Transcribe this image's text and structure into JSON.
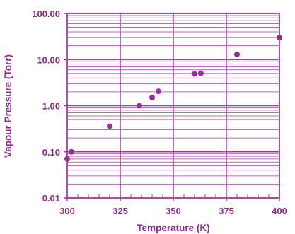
{
  "chart_data": {
    "type": "scatter",
    "title": "",
    "xlabel": "Temperature (K)",
    "ylabel": "Vapour Pressure (Torr)",
    "xlim": [
      300,
      400
    ],
    "ylim": [
      0.01,
      100
    ],
    "y_scale": "log",
    "grid": true,
    "legend": "none",
    "x_ticks": [
      300,
      325,
      350,
      375,
      400
    ],
    "x_tick_labels": [
      "300",
      "325",
      "350",
      "375",
      "400"
    ],
    "y_ticks": [
      0.01,
      0.1,
      1,
      10,
      100
    ],
    "y_tick_labels": [
      "0.01",
      "0.10",
      "1.00",
      "10.00",
      "100.00"
    ],
    "points": [
      {
        "x": 300,
        "y": 0.07
      },
      {
        "x": 302,
        "y": 0.1
      },
      {
        "x": 320,
        "y": 0.36
      },
      {
        "x": 334,
        "y": 1.0
      },
      {
        "x": 340,
        "y": 1.5
      },
      {
        "x": 343,
        "y": 2.05
      },
      {
        "x": 360,
        "y": 4.9
      },
      {
        "x": 363,
        "y": 5.05
      },
      {
        "x": 380,
        "y": 13.0
      },
      {
        "x": 400,
        "y": 30.0
      }
    ],
    "colors": {
      "grid": "#a03aa0",
      "text": "#8e2b8e",
      "marker": "#9b2d9b"
    }
  }
}
